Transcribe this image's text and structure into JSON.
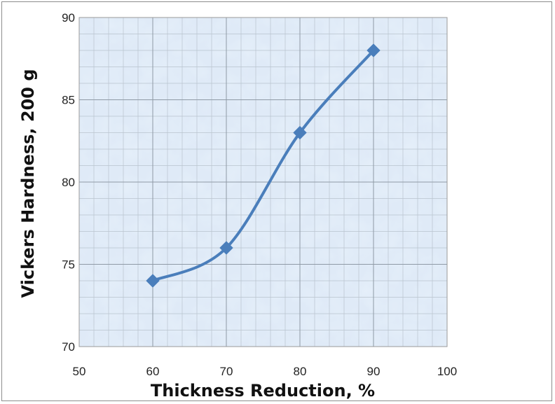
{
  "chart_data": {
    "type": "line",
    "xlabel": "Thickness Reduction, %",
    "ylabel": "Vickers Hardness, 200 g",
    "xlim": [
      50,
      100
    ],
    "ylim": [
      70,
      90
    ],
    "x_ticks": [
      "50",
      "60",
      "70",
      "80",
      "90",
      "100"
    ],
    "y_ticks": [
      "70",
      "75",
      "80",
      "85",
      "90"
    ],
    "grid": true,
    "smooth": true,
    "series": [
      {
        "x": [
          60,
          70,
          80,
          90
        ],
        "values": [
          74,
          76,
          83,
          88
        ],
        "marker": "diamond",
        "color": "#4a7ebb"
      }
    ]
  }
}
